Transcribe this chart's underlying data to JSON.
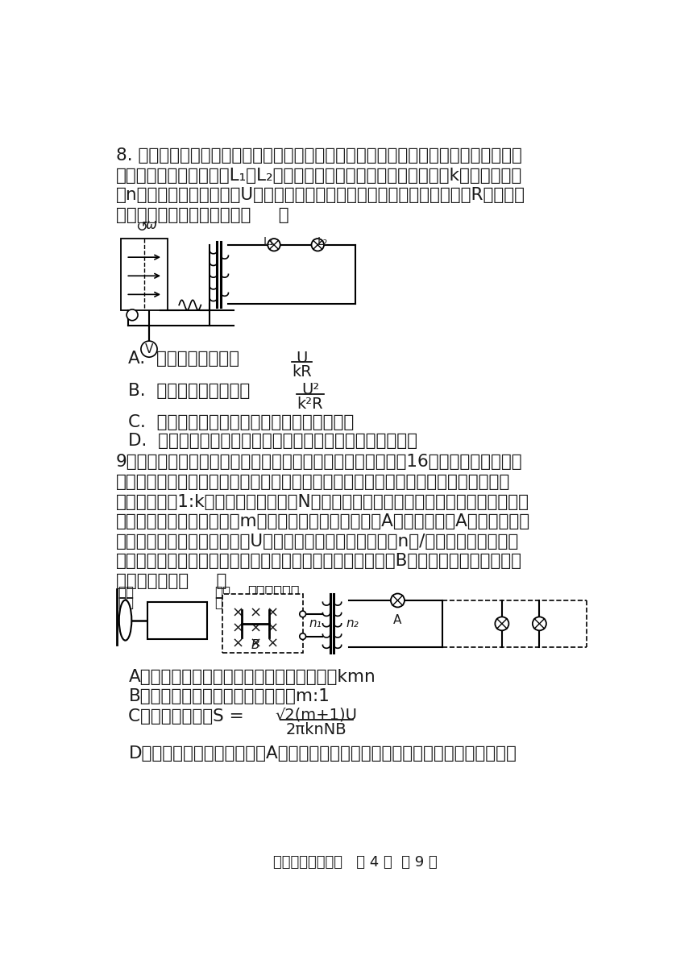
{
  "bg_color": "#ffffff",
  "page_width": 8.6,
  "page_height": 12.16,
  "text_color": "#1a1a1a",
  "q8_text_line1": "8. 如图所示，线框绕与匀强磁场垂直的轴匀速转动过程中产生正弦交流电，经理想变压",
  "q8_text_line2": "器变压后给两盏相同的灯L₁、L₂供电。变压器原、副线圈的匝数之比为k，当线框转速",
  "q8_text_line3": "为n时，理想电压表示数为U，灯泡正常发光。已知灯泡正常发光时的电阻为R，其他电",
  "q8_text_line4": "阻不计。下列说法正确的是（     ）",
  "q8_A": "A.  灯泡的额定电流为",
  "q8_A_frac_num": "U",
  "q8_A_frac_den": "kR",
  "q8_B": "B.  副线圈消耗的功率为",
  "q8_B_frac_num": "U²",
  "q8_B_frac_den": "k²R",
  "q8_C": "C.  线框经过中性面时，穿过线框的磁通量最大",
  "q8_D": "D.  线框经过中性面时，线框产生的感应电动势的瞬时值为零",
  "q9_text_line1": "9．风能是一种清洁且利用方便的能源，我国已探明的风能约为16亿千瓦，主要分布在",
  "q9_text_line2": "西北、华北、东北的草原和戈壁，以下为某风力发电机的模型图，风带动叶片转动，升",
  "q9_text_line3": "速齿轮箱通过1:k的转速比带动匝数为N的发电机线圈高速转动，线圈产生的交变电流经",
  "q9_text_line4": "过理想变压器后向用户端的m盏灯泡供电，其中电路中的A灯为指示灯，A与用户端的灯",
  "q9_text_line5": "泡规格完全相同，额定电压为U；若某段时间内叶片的转速为n转/秒，电路中的所有灯",
  "q9_text_line6": "泡均正常发光，已知磁体间的磁场为匀强磁场，磁感应强度为B，线圈电阻不计，则下列",
  "q9_text_line7": "说法正确的是（     ）",
  "q9_A": "A．经过理想变压器后输出交变电流的频率为kmn",
  "q9_B": "B．理想变压器原副线圈的匝数比为m:1",
  "q9_C": "C．线圈的面积为S =",
  "q9_C_frac_num": "√2(m+1)U",
  "q9_C_frac_den": "2πknNB",
  "q9_D": "D．若此时用户突然增多，则A灯变亮，其余灯泡的亮度变暗，发电机的总功率变小",
  "footer": "高二年级物理试卷   第 4 页  共 9 页"
}
